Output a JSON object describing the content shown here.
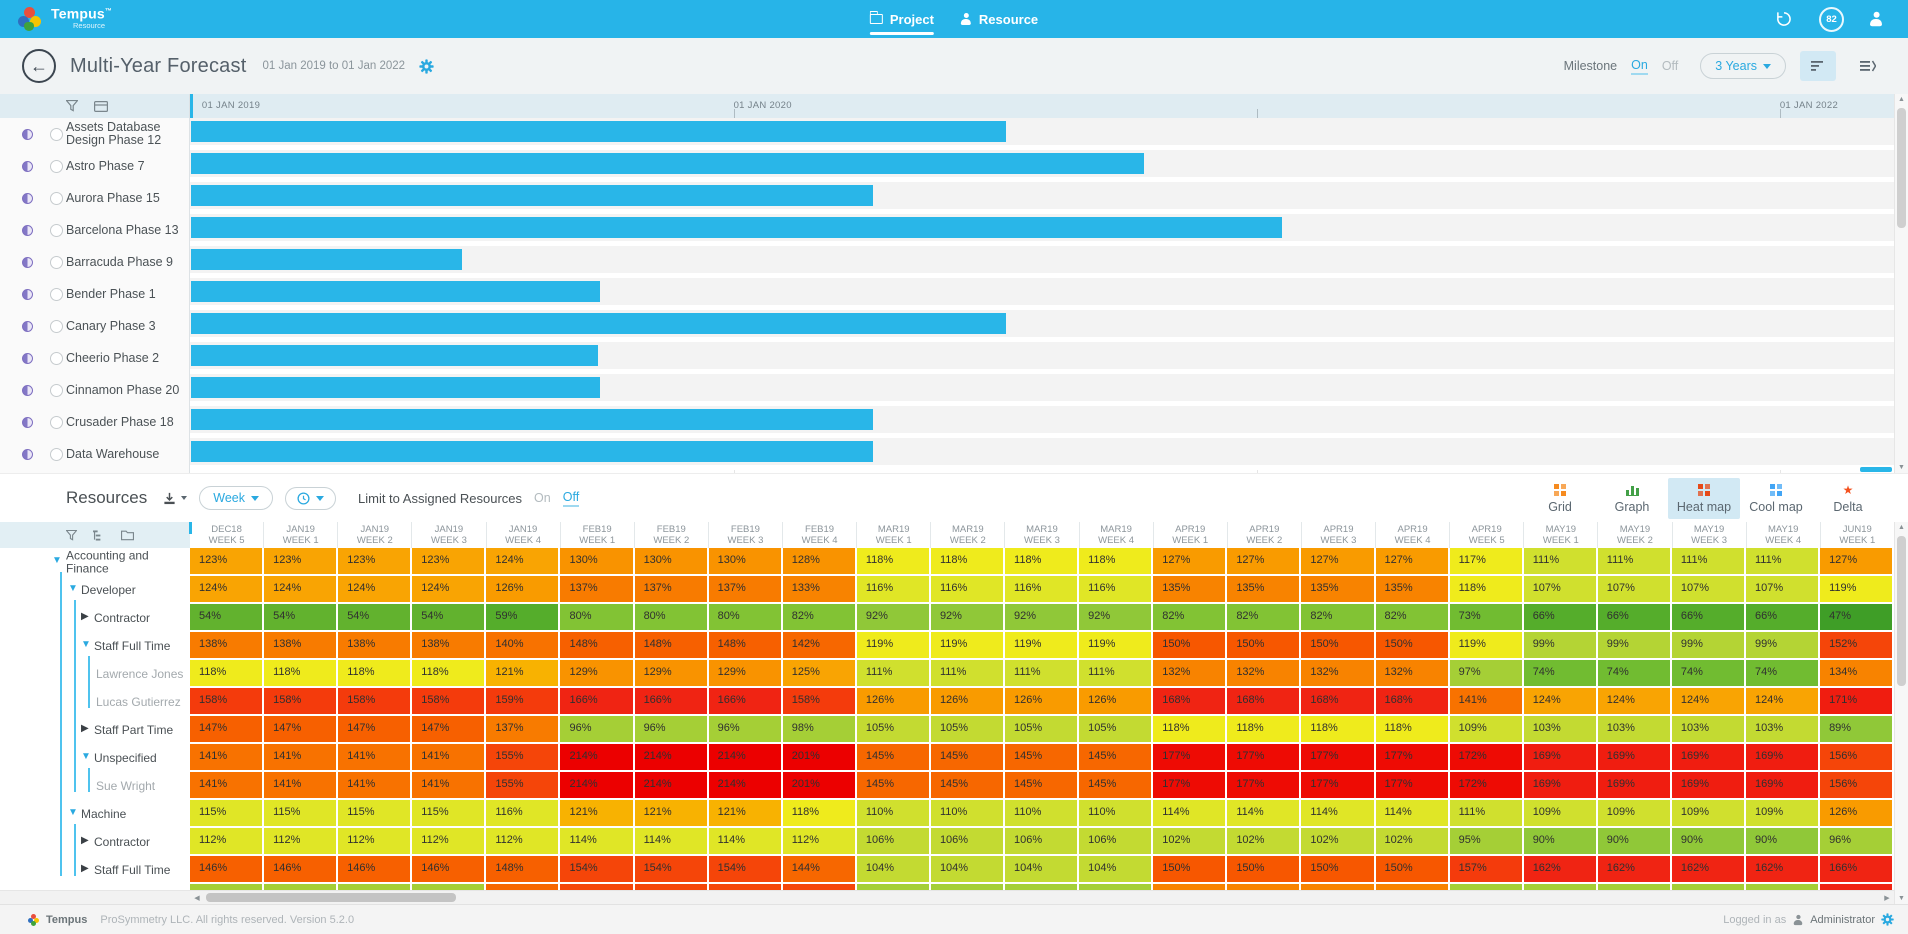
{
  "topbar": {
    "brand": "Tempus",
    "brand_tm": "™",
    "brand_sub": "Resource",
    "nav_project": "Project",
    "nav_resource": "Resource",
    "history_badge": "82",
    "accent": "#27B4E8"
  },
  "header": {
    "title": "Multi-Year Forecast",
    "date_range": "01 Jan 2019 to 01 Jan 2022",
    "milestone_label": "Milestone",
    "milestone_on": "On",
    "milestone_off": "Off",
    "milestone_state": "On",
    "range_button": "3 Years"
  },
  "gantt": {
    "bar_color": "#29B6E8",
    "timeline": [
      {
        "label": "01 JAN 2019",
        "pct": 0.7
      },
      {
        "label": "01 JAN 2020",
        "pct": 31.9
      },
      {
        "label": "01 JAN 2022",
        "pct": 93.3
      }
    ],
    "tick_pcts": [
      31.9,
      62.6,
      93.3
    ],
    "projects": [
      {
        "name": "Assets Database Design Phase 12",
        "bar_pct": 47.8
      },
      {
        "name": "Astro Phase 7",
        "bar_pct": 55.9
      },
      {
        "name": "Aurora Phase 15",
        "bar_pct": 40.0
      },
      {
        "name": "Barcelona Phase 13",
        "bar_pct": 64.0
      },
      {
        "name": "Barracuda Phase 9",
        "bar_pct": 15.9
      },
      {
        "name": "Bender Phase 1",
        "bar_pct": 24.0
      },
      {
        "name": "Canary Phase 3",
        "bar_pct": 47.8
      },
      {
        "name": "Cheerio Phase 2",
        "bar_pct": 23.9
      },
      {
        "name": "Cinnamon Phase 20",
        "bar_pct": 24.0
      },
      {
        "name": "Crusader Phase 18",
        "bar_pct": 40.0
      },
      {
        "name": "Data Warehouse",
        "bar_pct": 40.0
      }
    ]
  },
  "resources_bar": {
    "title": "Resources",
    "period": "Week",
    "limit_label": "Limit to Assigned Resources",
    "on": "On",
    "off": "Off",
    "limit_state": "Off",
    "views": [
      {
        "label": "Grid",
        "icon": "grid-icon",
        "color": "#F68B1F",
        "active": false
      },
      {
        "label": "Graph",
        "icon": "graph-icon",
        "color": "#43A047",
        "active": false
      },
      {
        "label": "Heat map",
        "icon": "heatmap-icon",
        "color": "#E64A19",
        "active": true
      },
      {
        "label": "Cool map",
        "icon": "coolmap-icon",
        "color": "#42A5F5",
        "active": false
      },
      {
        "label": "Delta",
        "icon": "delta-icon",
        "color": "#F4511E",
        "active": false
      }
    ]
  },
  "heatmap": {
    "columns": [
      {
        "m": "DEC18",
        "w": "WEEK 5"
      },
      {
        "m": "JAN19",
        "w": "WEEK 1"
      },
      {
        "m": "JAN19",
        "w": "WEEK 2"
      },
      {
        "m": "JAN19",
        "w": "WEEK 3"
      },
      {
        "m": "JAN19",
        "w": "WEEK 4"
      },
      {
        "m": "FEB19",
        "w": "WEEK 1"
      },
      {
        "m": "FEB19",
        "w": "WEEK 2"
      },
      {
        "m": "FEB19",
        "w": "WEEK 3"
      },
      {
        "m": "FEB19",
        "w": "WEEK 4"
      },
      {
        "m": "MAR19",
        "w": "WEEK 1"
      },
      {
        "m": "MAR19",
        "w": "WEEK 2"
      },
      {
        "m": "MAR19",
        "w": "WEEK 3"
      },
      {
        "m": "MAR19",
        "w": "WEEK 4"
      },
      {
        "m": "APR19",
        "w": "WEEK 1"
      },
      {
        "m": "APR19",
        "w": "WEEK 2"
      },
      {
        "m": "APR19",
        "w": "WEEK 3"
      },
      {
        "m": "APR19",
        "w": "WEEK 4"
      },
      {
        "m": "APR19",
        "w": "WEEK 5"
      },
      {
        "m": "MAY19",
        "w": "WEEK 1"
      },
      {
        "m": "MAY19",
        "w": "WEEK 2"
      },
      {
        "m": "MAY19",
        "w": "WEEK 3"
      },
      {
        "m": "MAY19",
        "w": "WEEK 4"
      },
      {
        "m": "JUN19",
        "w": "WEEK 1"
      }
    ],
    "rows": [
      {
        "label": "Accounting and Finance",
        "level": 0,
        "caret": "down",
        "values": [
          123,
          123,
          123,
          123,
          124,
          130,
          130,
          130,
          128,
          118,
          118,
          118,
          118,
          127,
          127,
          127,
          127,
          117,
          111,
          111,
          111,
          111,
          127
        ]
      },
      {
        "label": "Developer",
        "level": 1,
        "caret": "down",
        "values": [
          124,
          124,
          124,
          124,
          126,
          137,
          137,
          137,
          133,
          116,
          116,
          116,
          116,
          135,
          135,
          135,
          135,
          118,
          107,
          107,
          107,
          107,
          119
        ]
      },
      {
        "label": "Contractor",
        "level": 2,
        "caret": "right",
        "values": [
          54,
          54,
          54,
          54,
          59,
          80,
          80,
          80,
          82,
          92,
          92,
          92,
          92,
          82,
          82,
          82,
          82,
          73,
          66,
          66,
          66,
          66,
          47
        ]
      },
      {
        "label": "Staff Full Time",
        "level": 2,
        "caret": "down",
        "values": [
          138,
          138,
          138,
          138,
          140,
          148,
          148,
          148,
          142,
          119,
          119,
          119,
          119,
          150,
          150,
          150,
          150,
          119,
          99,
          99,
          99,
          99,
          152
        ]
      },
      {
        "label": "Lawrence Jones",
        "level": 3,
        "caret": "none",
        "values": [
          118,
          118,
          118,
          118,
          121,
          129,
          129,
          129,
          125,
          111,
          111,
          111,
          111,
          132,
          132,
          132,
          132,
          97,
          74,
          74,
          74,
          74,
          134
        ]
      },
      {
        "label": "Lucas Gutierrez",
        "level": 3,
        "caret": "none",
        "values": [
          158,
          158,
          158,
          158,
          159,
          166,
          166,
          166,
          158,
          126,
          126,
          126,
          126,
          168,
          168,
          168,
          168,
          141,
          124,
          124,
          124,
          124,
          171
        ]
      },
      {
        "label": "Staff Part Time",
        "level": 2,
        "caret": "right",
        "values": [
          147,
          147,
          147,
          147,
          137,
          96,
          96,
          96,
          98,
          105,
          105,
          105,
          105,
          118,
          118,
          118,
          118,
          109,
          103,
          103,
          103,
          103,
          89
        ]
      },
      {
        "label": "Unspecified",
        "level": 2,
        "caret": "down",
        "values": [
          141,
          141,
          141,
          141,
          155,
          214,
          214,
          214,
          201,
          145,
          145,
          145,
          145,
          177,
          177,
          177,
          177,
          172,
          169,
          169,
          169,
          169,
          156
        ]
      },
      {
        "label": "Sue Wright",
        "level": 3,
        "caret": "none",
        "values": [
          141,
          141,
          141,
          141,
          155,
          214,
          214,
          214,
          201,
          145,
          145,
          145,
          145,
          177,
          177,
          177,
          177,
          172,
          169,
          169,
          169,
          169,
          156
        ]
      },
      {
        "label": "Machine",
        "level": 1,
        "caret": "down",
        "values": [
          115,
          115,
          115,
          115,
          116,
          121,
          121,
          121,
          118,
          110,
          110,
          110,
          110,
          114,
          114,
          114,
          114,
          111,
          109,
          109,
          109,
          109,
          126
        ]
      },
      {
        "label": "Contractor",
        "level": 2,
        "caret": "right",
        "values": [
          112,
          112,
          112,
          112,
          112,
          114,
          114,
          114,
          112,
          106,
          106,
          106,
          106,
          102,
          102,
          102,
          102,
          95,
          90,
          90,
          90,
          90,
          96
        ]
      },
      {
        "label": "Staff Full Time",
        "level": 2,
        "caret": "right",
        "values": [
          146,
          146,
          146,
          146,
          148,
          154,
          154,
          154,
          144,
          104,
          104,
          104,
          104,
          150,
          150,
          150,
          150,
          157,
          162,
          162,
          162,
          162,
          166
        ]
      }
    ],
    "palette": [
      {
        "max": 50,
        "color": "#3F9E27"
      },
      {
        "max": 58,
        "color": "#62B22E"
      },
      {
        "max": 70,
        "color": "#55AD2B"
      },
      {
        "max": 78,
        "color": "#71BC31"
      },
      {
        "max": 85,
        "color": "#82C334"
      },
      {
        "max": 93,
        "color": "#90C838"
      },
      {
        "max": 98,
        "color": "#A5CF36"
      },
      {
        "max": 101,
        "color": "#B4D434"
      },
      {
        "max": 106,
        "color": "#C3DA32"
      },
      {
        "max": 111,
        "color": "#D0E02E"
      },
      {
        "max": 116,
        "color": "#E0E626"
      },
      {
        "max": 120,
        "color": "#EFEB1C"
      },
      {
        "max": 122,
        "color": "#F8B201"
      },
      {
        "max": 125,
        "color": "#F9A403"
      },
      {
        "max": 127,
        "color": "#F99B00"
      },
      {
        "max": 131,
        "color": "#F99300"
      },
      {
        "max": 136,
        "color": "#F88300"
      },
      {
        "max": 139,
        "color": "#F87B00"
      },
      {
        "max": 141,
        "color": "#F87200"
      },
      {
        "max": 145,
        "color": "#F76700"
      },
      {
        "max": 148,
        "color": "#F76000"
      },
      {
        "max": 151,
        "color": "#F75700"
      },
      {
        "max": 156,
        "color": "#F54509"
      },
      {
        "max": 160,
        "color": "#F43B0C"
      },
      {
        "max": 168,
        "color": "#F02413"
      },
      {
        "max": 171,
        "color": "#F01D10"
      },
      {
        "max": 178,
        "color": "#EE0B04"
      },
      {
        "max": 9999,
        "color": "#EC0000"
      }
    ],
    "partial_row_colors": [
      "#A5CF36",
      "#A5CF36",
      "#A5CF36",
      "#A5CF36",
      "#F76700",
      "#F5470A",
      "#F5470A",
      "#F5470A",
      "#F5470A",
      "#A5CF36",
      "#A5CF36",
      "#A5CF36",
      "#A5CF36",
      "#F88300",
      "#F88300",
      "#F88300",
      "#F88300",
      "#A5CF36",
      "#A5CF36",
      "#A5CF36",
      "#A5CF36",
      "#A5CF36",
      "#F02413"
    ]
  },
  "footer": {
    "brand": "Tempus",
    "copyright": "ProSymmetry LLC. All rights reserved. Version 5.2.0",
    "logged_in": "Logged in as",
    "user": "Administrator"
  }
}
